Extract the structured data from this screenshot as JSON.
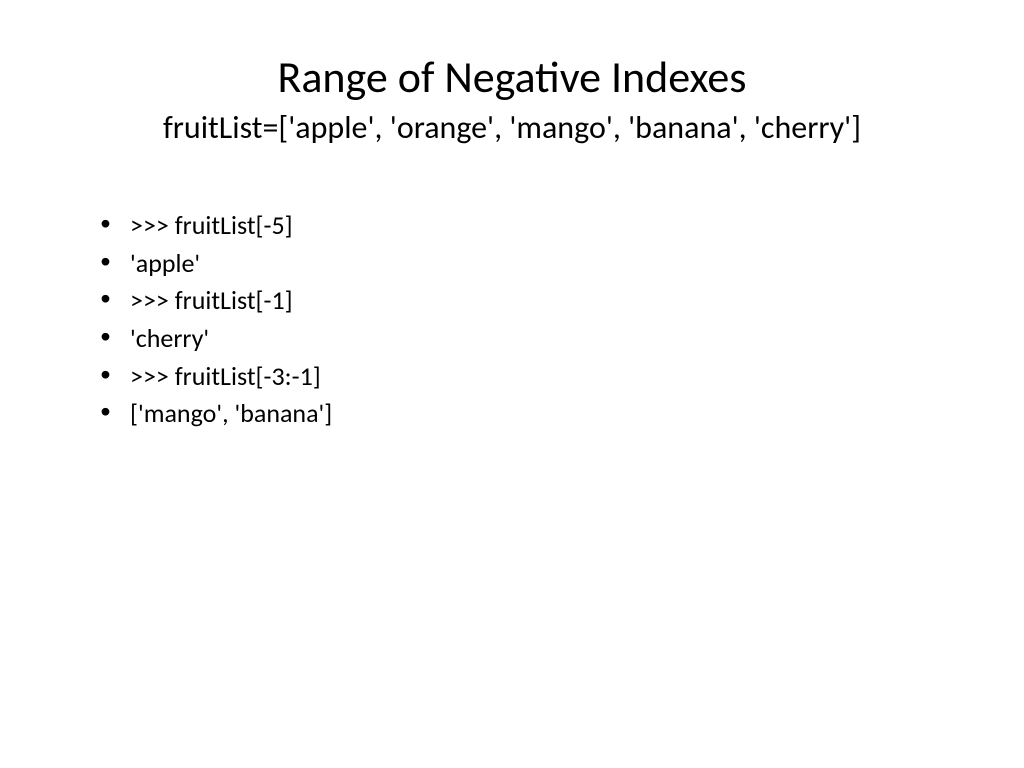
{
  "slide": {
    "title": "Range of Negative Indexes",
    "subtitle": "fruitList=['apple', 'orange', 'mango', 'banana', 'cherry']",
    "bullets": [
      ">>> fruitList[-5]",
      "'apple'",
      ">>> fruitList[-1]",
      "'cherry'",
      ">>> fruitList[-3:-1]",
      "['mango', 'banana']"
    ],
    "colors": {
      "background": "#ffffff",
      "text": "#000000"
    },
    "typography": {
      "title_fontsize": 44,
      "subtitle_fontsize": 32,
      "bullet_fontsize": 26,
      "font_family": "Calibri"
    }
  }
}
